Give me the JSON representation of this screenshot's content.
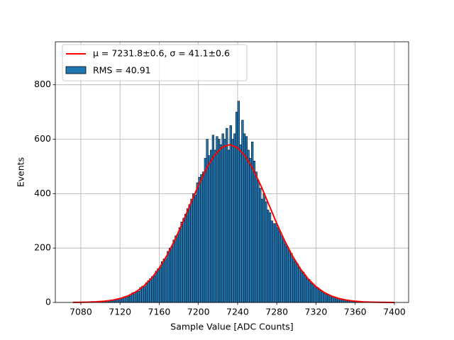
{
  "chart_data": {
    "type": "histogram",
    "xlabel": "Sample Value [ADC Counts]",
    "ylabel": "Events",
    "name": "RMS = 40.91",
    "color": "#1f77b4",
    "edgecolor": "#000000",
    "bins": [
      7072,
      7074,
      7076,
      7078,
      7080,
      7082,
      7084,
      7086,
      7088,
      7090,
      7092,
      7094,
      7096,
      7098,
      7100,
      7102,
      7104,
      7106,
      7108,
      7110,
      7112,
      7114,
      7116,
      7118,
      7120,
      7122,
      7124,
      7126,
      7128,
      7130,
      7132,
      7134,
      7136,
      7138,
      7140,
      7142,
      7144,
      7146,
      7148,
      7150,
      7152,
      7154,
      7156,
      7158,
      7160,
      7162,
      7164,
      7166,
      7168,
      7170,
      7172,
      7174,
      7176,
      7178,
      7180,
      7182,
      7184,
      7186,
      7188,
      7190,
      7192,
      7194,
      7196,
      7198,
      7200,
      7202,
      7204,
      7206,
      7208,
      7210,
      7212,
      7214,
      7216,
      7218,
      7220,
      7222,
      7224,
      7226,
      7228,
      7230,
      7232,
      7234,
      7236,
      7238,
      7240,
      7242,
      7244,
      7246,
      7248,
      7250,
      7252,
      7254,
      7256,
      7258,
      7260,
      7262,
      7264,
      7266,
      7268,
      7270,
      7272,
      7274,
      7276,
      7278,
      7280,
      7282,
      7284,
      7286,
      7288,
      7290,
      7292,
      7294,
      7296,
      7298,
      7300,
      7302,
      7304,
      7306,
      7308,
      7310,
      7312,
      7314,
      7316,
      7318,
      7320,
      7322,
      7324,
      7326,
      7328,
      7330,
      7332,
      7334,
      7336,
      7338,
      7340,
      7342,
      7344,
      7346,
      7348,
      7350,
      7352,
      7354,
      7356,
      7358,
      7360,
      7362,
      7364,
      7366,
      7368,
      7370,
      7372,
      7374,
      7376,
      7378,
      7380,
      7382,
      7384,
      7386,
      7388,
      7390,
      7392,
      7394,
      7396,
      7398,
      7400
    ],
    "values": [
      0,
      0,
      1,
      0,
      1,
      1,
      1,
      2,
      1,
      2,
      2,
      3,
      3,
      4,
      3,
      5,
      6,
      5,
      7,
      9,
      8,
      11,
      12,
      14,
      17,
      16,
      22,
      24,
      23,
      30,
      36,
      38,
      42,
      41,
      55,
      60,
      58,
      72,
      80,
      88,
      95,
      98,
      115,
      124,
      128,
      150,
      160,
      162,
      188,
      200,
      205,
      230,
      245,
      250,
      275,
      296,
      310,
      325,
      345,
      360,
      380,
      400,
      395,
      440,
      460,
      470,
      480,
      530,
      600,
      540,
      560,
      615,
      560,
      610,
      600,
      580,
      620,
      600,
      640,
      560,
      650,
      600,
      620,
      700,
      740,
      580,
      670,
      620,
      610,
      560,
      530,
      590,
      520,
      480,
      450,
      420,
      380,
      400,
      370,
      340,
      330,
      300,
      290,
      290,
      275,
      262,
      245,
      230,
      215,
      205,
      190,
      180,
      160,
      150,
      142,
      130,
      116,
      112,
      100,
      88,
      85,
      72,
      68,
      58,
      56,
      48,
      45,
      38,
      36,
      30,
      29,
      24,
      22,
      18,
      17,
      14,
      13,
      10,
      10,
      8,
      7,
      6,
      5,
      5,
      4,
      3,
      3,
      2,
      2,
      2,
      1,
      1,
      1,
      1,
      0,
      1,
      0,
      0,
      0,
      0,
      0,
      0,
      0,
      0
    ],
    "fit": {
      "type": "line",
      "name": "μ = 7231.8±0.6, σ = 41.1±0.6",
      "color": "#ff0000",
      "x": [
        7072,
        7080,
        7088,
        7096,
        7104,
        7112,
        7120,
        7128,
        7136,
        7144,
        7152,
        7160,
        7168,
        7176,
        7184,
        7192,
        7200,
        7208,
        7216,
        7224,
        7232,
        7240,
        7248,
        7256,
        7264,
        7272,
        7280,
        7288,
        7296,
        7304,
        7312,
        7320,
        7328,
        7336,
        7344,
        7352,
        7360,
        7368,
        7376,
        7384,
        7392,
        7400
      ],
      "values": [
        0.3,
        0.6,
        1.3,
        2.5,
        4.6,
        8.3,
        14.3,
        23.9,
        38.3,
        59.2,
        88.0,
        126.0,
        173.4,
        230.0,
        294.0,
        363.0,
        430.0,
        491.0,
        539.0,
        570.0,
        580.0,
        569.0,
        537.0,
        488.0,
        427.0,
        359.0,
        290.0,
        227.0,
        171.0,
        124.0,
        86.5,
        58.0,
        37.5,
        23.3,
        14.0,
        8.0,
        4.5,
        2.4,
        1.2,
        0.6,
        0.3,
        0.1
      ]
    },
    "xlim": [
      7054,
      7414.5
    ],
    "ylim": [
      0,
      958
    ],
    "xticks": [
      7080,
      7120,
      7160,
      7200,
      7240,
      7280,
      7320,
      7360,
      7400
    ],
    "yticks": [
      0,
      200,
      400,
      600,
      800
    ],
    "grid": true,
    "legend": "upper left"
  }
}
